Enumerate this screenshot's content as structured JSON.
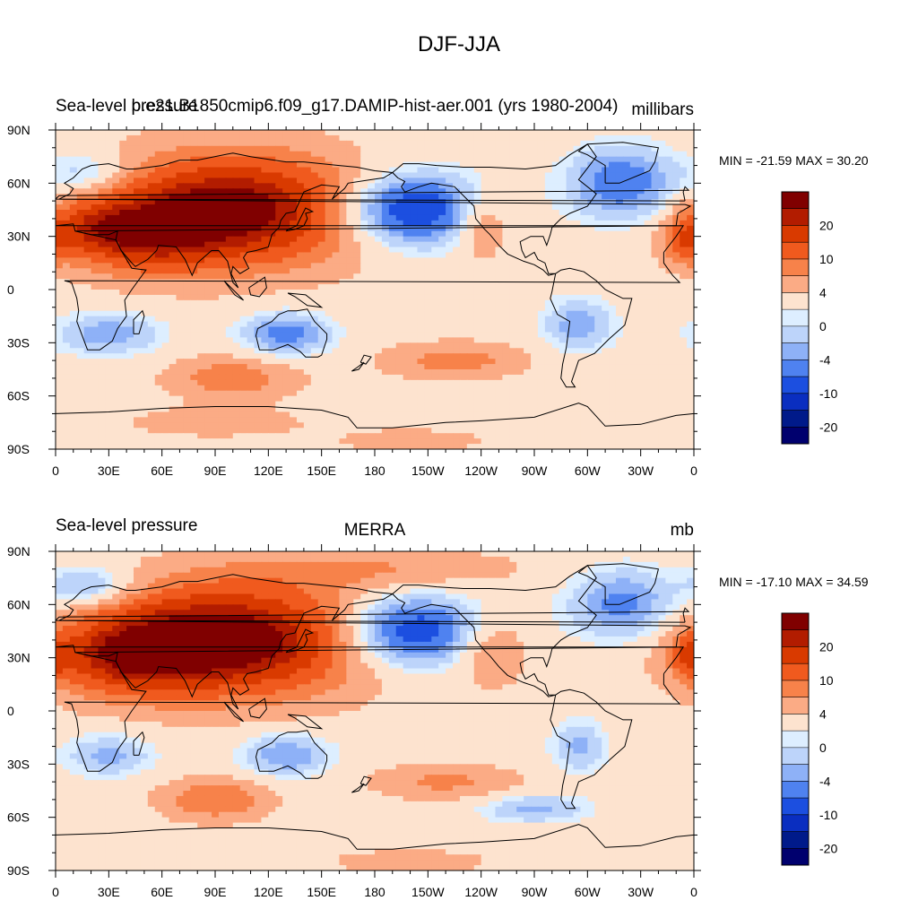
{
  "figure": {
    "title": "DJF-JJA"
  },
  "colors": {
    "levels": [
      "#800000",
      "#b21c00",
      "#d93a00",
      "#f05a1e",
      "#f7824a",
      "#fbab85",
      "#fde3cf",
      "#ddeeff",
      "#bdd4fa",
      "#8eb1f7",
      "#4f82f0",
      "#1c4fe0",
      "#0a2ec0",
      "#001a8a",
      "#00006e"
    ],
    "land_outline": "#000000"
  },
  "chart_data": [
    {
      "type": "heatmap",
      "title_left": "Sea-level pressure",
      "title_center": "b.e21.B1850cmip6.f09_g17.DAMIP-hist-aer.001 (yrs 1980-2004)",
      "title_right": "millibars",
      "stats": "MIN = -21.59 MAX =  30.20",
      "min": -21.59,
      "max": 30.2,
      "x_ticks": [
        "0",
        "30E",
        "60E",
        "90E",
        "120E",
        "150E",
        "180",
        "150W",
        "120W",
        "90W",
        "60W",
        "30W",
        "0"
      ],
      "y_ticks": [
        "90N",
        "60N",
        "30N",
        "0",
        "30S",
        "60S",
        "90S"
      ],
      "xlim": [
        0,
        360
      ],
      "ylim": [
        -90,
        90
      ],
      "colorbar_labels": [
        "20",
        "10",
        "4",
        "0",
        "-4",
        "-10",
        "-20"
      ],
      "features": [
        {
          "lon": 100,
          "lat": 45,
          "lon_r": 70,
          "lat_r": 30,
          "value": 28
        },
        {
          "lon": 50,
          "lat": 30,
          "lon_r": 40,
          "lat_r": 20,
          "value": 14
        },
        {
          "lon": 20,
          "lat": 35,
          "lon_r": 25,
          "lat_r": 15,
          "value": 9
        },
        {
          "lon": 200,
          "lat": 45,
          "lon_r": 40,
          "lat_r": 20,
          "value": -21
        },
        {
          "lon": 240,
          "lat": 37,
          "lon_r": 15,
          "lat_r": 18,
          "value": 9
        },
        {
          "lon": 320,
          "lat": 60,
          "lon_r": 30,
          "lat_r": 20,
          "value": -14
        },
        {
          "lon": 355,
          "lat": 28,
          "lon_r": 12,
          "lat_r": 14,
          "value": 10
        },
        {
          "lon": 20,
          "lat": 65,
          "lon_r": 25,
          "lat_r": 12,
          "value": -8
        },
        {
          "lon": 130,
          "lat": -25,
          "lon_r": 25,
          "lat_r": 12,
          "value": -12
        },
        {
          "lon": 30,
          "lat": -25,
          "lon_r": 30,
          "lat_r": 12,
          "value": -9
        },
        {
          "lon": 295,
          "lat": -20,
          "lon_r": 20,
          "lat_r": 15,
          "value": -9
        },
        {
          "lon": 100,
          "lat": -50,
          "lon_r": 35,
          "lat_r": 12,
          "value": 9
        },
        {
          "lon": 225,
          "lat": -40,
          "lon_r": 40,
          "lat_r": 10,
          "value": 8
        },
        {
          "lon": 90,
          "lat": -75,
          "lon_r": 50,
          "lat_r": 8,
          "value": 5
        },
        {
          "lon": 200,
          "lat": -85,
          "lon_r": 40,
          "lat_r": 6,
          "value": 5
        }
      ]
    },
    {
      "type": "heatmap",
      "title_left": "Sea-level pressure",
      "title_center": "MERRA",
      "title_right": "mb",
      "stats": "MIN = -17.10 MAX =  34.59",
      "min": -17.1,
      "max": 34.59,
      "x_ticks": [
        "0",
        "30E",
        "60E",
        "90E",
        "120E",
        "150E",
        "180",
        "150W",
        "120W",
        "90W",
        "60W",
        "30W",
        "0"
      ],
      "y_ticks": [
        "90N",
        "60N",
        "30N",
        "0",
        "30S",
        "60S",
        "90S"
      ],
      "xlim": [
        0,
        360
      ],
      "ylim": [
        -90,
        90
      ],
      "colorbar_labels": [
        "20",
        "10",
        "4",
        "0",
        "-4",
        "-10",
        "-20"
      ],
      "features": [
        {
          "lon": 95,
          "lat": 40,
          "lon_r": 75,
          "lat_r": 30,
          "value": 30
        },
        {
          "lon": 40,
          "lat": 30,
          "lon_r": 40,
          "lat_r": 20,
          "value": 14
        },
        {
          "lon": 200,
          "lat": 45,
          "lon_r": 40,
          "lat_r": 20,
          "value": -20
        },
        {
          "lon": 245,
          "lat": 35,
          "lon_r": 20,
          "lat_r": 20,
          "value": 8
        },
        {
          "lon": 320,
          "lat": 60,
          "lon_r": 30,
          "lat_r": 20,
          "value": -12
        },
        {
          "lon": 358,
          "lat": 30,
          "lon_r": 10,
          "lat_r": 12,
          "value": 10
        },
        {
          "lon": 20,
          "lat": 70,
          "lon_r": 25,
          "lat_r": 12,
          "value": -10
        },
        {
          "lon": 180,
          "lat": 80,
          "lon_r": 80,
          "lat_r": 12,
          "value": 6
        },
        {
          "lon": 130,
          "lat": -25,
          "lon_r": 25,
          "lat_r": 12,
          "value": -10
        },
        {
          "lon": 30,
          "lat": -25,
          "lon_r": 25,
          "lat_r": 12,
          "value": -8
        },
        {
          "lon": 295,
          "lat": -20,
          "lon_r": 15,
          "lat_r": 15,
          "value": -8
        },
        {
          "lon": 90,
          "lat": -50,
          "lon_r": 30,
          "lat_r": 12,
          "value": 10
        },
        {
          "lon": 220,
          "lat": -40,
          "lon_r": 40,
          "lat_r": 10,
          "value": 7
        },
        {
          "lon": 270,
          "lat": -55,
          "lon_r": 30,
          "lat_r": 8,
          "value": -8
        },
        {
          "lon": 200,
          "lat": -85,
          "lon_r": 40,
          "lat_r": 6,
          "value": 6
        }
      ]
    }
  ]
}
